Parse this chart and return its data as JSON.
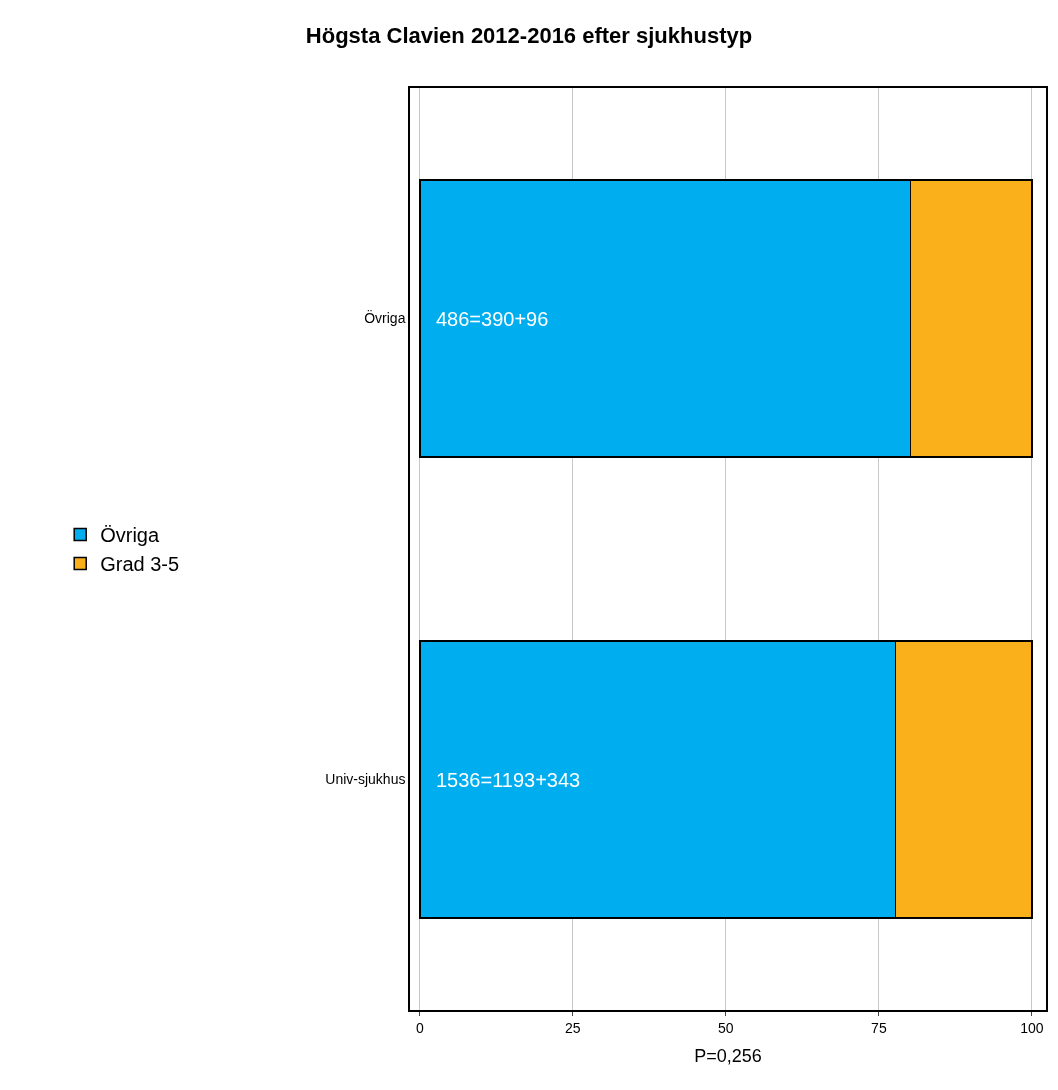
{
  "chart_data": {
    "type": "bar",
    "orientation": "horizontal",
    "stacked": true,
    "title": "Högsta Clavien 2012-2016 efter sjukhustyp",
    "xlabel": "P=0,256",
    "categories": [
      "Övriga",
      "Univ-sjukhus"
    ],
    "series": [
      {
        "name": "Övriga",
        "color": "#00aeef",
        "values": [
          80.2,
          77.7
        ]
      },
      {
        "name": "Grad 3-5",
        "color": "#f9b01b",
        "values": [
          19.8,
          22.3
        ]
      }
    ],
    "annotations": [
      "486=390+96",
      "1536=1193+343"
    ],
    "xlim": [
      -1.6,
      102.3
    ],
    "xticks": [
      0,
      25,
      50,
      75,
      100
    ],
    "grid": "x",
    "legend": "left"
  }
}
